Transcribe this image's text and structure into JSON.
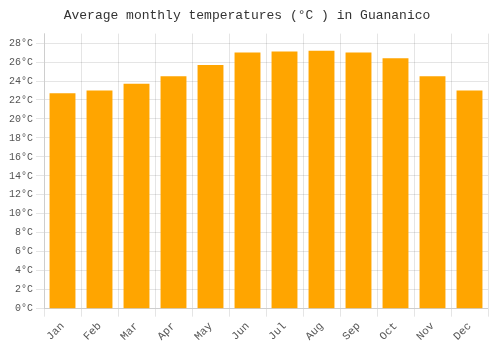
{
  "chart_data": {
    "type": "bar",
    "title": "Average monthly temperatures (°C ) in Guananico",
    "categories": [
      "Jan",
      "Feb",
      "Mar",
      "Apr",
      "May",
      "Jun",
      "Jul",
      "Aug",
      "Sep",
      "Oct",
      "Nov",
      "Dec"
    ],
    "values": [
      22.7,
      23.0,
      23.7,
      24.5,
      25.7,
      27.0,
      27.1,
      27.2,
      27.0,
      26.4,
      24.5,
      23.0
    ],
    "color": "#FFA500",
    "ylim": [
      0,
      29
    ],
    "yticks": [
      {
        "value": 0,
        "label": "0°C"
      },
      {
        "value": 2,
        "label": "2°C"
      },
      {
        "value": 4,
        "label": "4°C"
      },
      {
        "value": 6,
        "label": "6°C"
      },
      {
        "value": 8,
        "label": "8°C"
      },
      {
        "value": 10,
        "label": "10°C"
      },
      {
        "value": 12,
        "label": "12°C"
      },
      {
        "value": 14,
        "label": "14°C"
      },
      {
        "value": 16,
        "label": "16°C"
      },
      {
        "value": 18,
        "label": "18°C"
      },
      {
        "value": 20,
        "label": "20°C"
      },
      {
        "value": 22,
        "label": "22°C"
      },
      {
        "value": 24,
        "label": "24°C"
      },
      {
        "value": 26,
        "label": "26°C"
      },
      {
        "value": 28,
        "label": "28°C"
      }
    ],
    "grid": true
  }
}
